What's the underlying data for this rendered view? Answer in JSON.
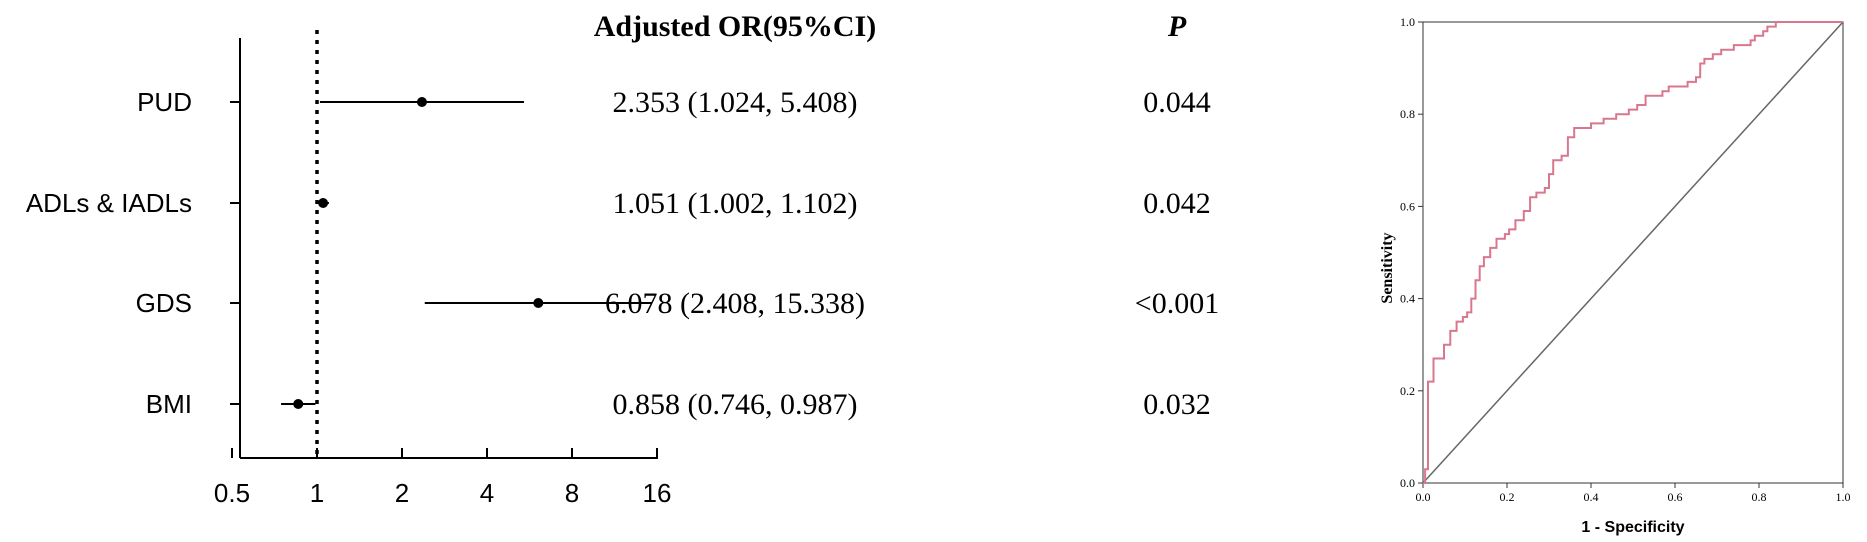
{
  "chart_data": [
    {
      "type": "forest",
      "x_scale": "log2",
      "xlim": [
        0.5,
        16
      ],
      "x_ticks": [
        "0.5",
        "1",
        "2",
        "4",
        "8",
        "16"
      ],
      "reference_line": 1,
      "table_header_or": "Adjusted OR(95%CI)",
      "table_header_p": "P",
      "rows": [
        {
          "label": "PUD",
          "or": 2.353,
          "lo": 1.024,
          "hi": 5.408,
          "or_text": "2.353 (1.024, 5.408)",
          "p_text": "0.044"
        },
        {
          "label": "ADLs & IADLs",
          "or": 1.051,
          "lo": 1.002,
          "hi": 1.102,
          "or_text": "1.051 (1.002, 1.102)",
          "p_text": "0.042"
        },
        {
          "label": "GDS",
          "or": 6.078,
          "lo": 2.408,
          "hi": 15.338,
          "or_text": "6.078 (2.408, 15.338)",
          "p_text": "<0.001"
        },
        {
          "label": "BMI",
          "or": 0.858,
          "lo": 0.746,
          "hi": 0.987,
          "or_text": "0.858 (0.746, 0.987)",
          "p_text": "0.032"
        }
      ]
    },
    {
      "type": "line",
      "xlabel": "1 - Specificity",
      "ylabel": "Sensitivity",
      "xlim": [
        0,
        1
      ],
      "ylim": [
        0,
        1
      ],
      "x_ticks": [
        "0.0",
        "0.2",
        "0.4",
        "0.6",
        "0.8",
        "1.0"
      ],
      "y_ticks": [
        "0.0",
        "0.2",
        "0.4",
        "0.6",
        "0.8",
        "1.0"
      ],
      "diagonal_reference": true,
      "roc_color": "#d9778f",
      "roc_points": [
        [
          0,
          0
        ],
        [
          0.005,
          0
        ],
        [
          0.005,
          0.03
        ],
        [
          0.012,
          0.03
        ],
        [
          0.012,
          0.22
        ],
        [
          0.025,
          0.22
        ],
        [
          0.025,
          0.27
        ],
        [
          0.05,
          0.27
        ],
        [
          0.05,
          0.3
        ],
        [
          0.065,
          0.3
        ],
        [
          0.065,
          0.33
        ],
        [
          0.08,
          0.33
        ],
        [
          0.08,
          0.35
        ],
        [
          0.095,
          0.35
        ],
        [
          0.095,
          0.36
        ],
        [
          0.105,
          0.36
        ],
        [
          0.105,
          0.37
        ],
        [
          0.115,
          0.37
        ],
        [
          0.115,
          0.4
        ],
        [
          0.125,
          0.4
        ],
        [
          0.125,
          0.44
        ],
        [
          0.135,
          0.44
        ],
        [
          0.135,
          0.47
        ],
        [
          0.145,
          0.47
        ],
        [
          0.145,
          0.49
        ],
        [
          0.16,
          0.49
        ],
        [
          0.16,
          0.51
        ],
        [
          0.175,
          0.51
        ],
        [
          0.175,
          0.53
        ],
        [
          0.195,
          0.53
        ],
        [
          0.195,
          0.54
        ],
        [
          0.205,
          0.54
        ],
        [
          0.205,
          0.55
        ],
        [
          0.22,
          0.55
        ],
        [
          0.22,
          0.57
        ],
        [
          0.24,
          0.57
        ],
        [
          0.24,
          0.59
        ],
        [
          0.255,
          0.59
        ],
        [
          0.255,
          0.62
        ],
        [
          0.27,
          0.62
        ],
        [
          0.27,
          0.63
        ],
        [
          0.29,
          0.63
        ],
        [
          0.29,
          0.64
        ],
        [
          0.3,
          0.64
        ],
        [
          0.3,
          0.67
        ],
        [
          0.31,
          0.67
        ],
        [
          0.31,
          0.7
        ],
        [
          0.33,
          0.7
        ],
        [
          0.33,
          0.71
        ],
        [
          0.345,
          0.71
        ],
        [
          0.345,
          0.75
        ],
        [
          0.36,
          0.75
        ],
        [
          0.36,
          0.77
        ],
        [
          0.4,
          0.77
        ],
        [
          0.4,
          0.78
        ],
        [
          0.43,
          0.78
        ],
        [
          0.43,
          0.79
        ],
        [
          0.46,
          0.79
        ],
        [
          0.46,
          0.8
        ],
        [
          0.49,
          0.8
        ],
        [
          0.49,
          0.81
        ],
        [
          0.51,
          0.81
        ],
        [
          0.51,
          0.82
        ],
        [
          0.53,
          0.82
        ],
        [
          0.53,
          0.84
        ],
        [
          0.57,
          0.84
        ],
        [
          0.57,
          0.85
        ],
        [
          0.585,
          0.85
        ],
        [
          0.585,
          0.86
        ],
        [
          0.63,
          0.86
        ],
        [
          0.63,
          0.87
        ],
        [
          0.65,
          0.87
        ],
        [
          0.65,
          0.88
        ],
        [
          0.66,
          0.88
        ],
        [
          0.66,
          0.91
        ],
        [
          0.67,
          0.91
        ],
        [
          0.67,
          0.92
        ],
        [
          0.69,
          0.92
        ],
        [
          0.69,
          0.93
        ],
        [
          0.71,
          0.93
        ],
        [
          0.71,
          0.94
        ],
        [
          0.74,
          0.94
        ],
        [
          0.74,
          0.95
        ],
        [
          0.78,
          0.95
        ],
        [
          0.78,
          0.96
        ],
        [
          0.79,
          0.96
        ],
        [
          0.79,
          0.97
        ],
        [
          0.81,
          0.97
        ],
        [
          0.81,
          0.98
        ],
        [
          0.82,
          0.98
        ],
        [
          0.82,
          0.99
        ],
        [
          0.84,
          0.99
        ],
        [
          0.84,
          1.0
        ],
        [
          1.0,
          1.0
        ]
      ]
    }
  ]
}
